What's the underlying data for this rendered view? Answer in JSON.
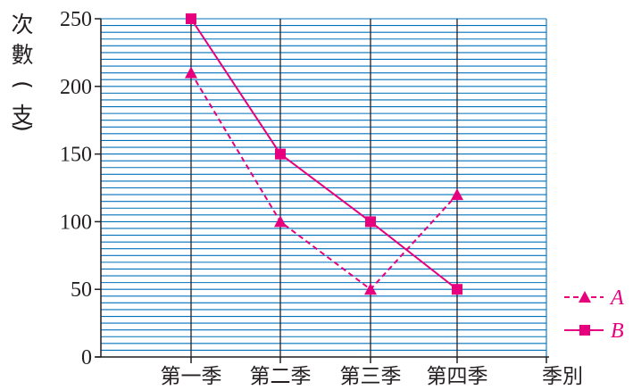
{
  "chart_data": {
    "type": "line",
    "xlabel": "季別",
    "ylabel_chars": [
      "次",
      "數",
      "(",
      "支",
      ")"
    ],
    "categories": [
      "第一季",
      "第二季",
      "第三季",
      "第四季"
    ],
    "ylim": [
      0,
      250
    ],
    "yticks": [
      "0",
      "50",
      "100",
      "150",
      "200",
      "250"
    ],
    "ytick_values": [
      0,
      50,
      100,
      150,
      200,
      250
    ],
    "minor_grid_step": 5,
    "grid": true,
    "legend_placement": "bottom-right",
    "series": [
      {
        "name": "A",
        "values": [
          210,
          100,
          50,
          120
        ],
        "marker": "triangle",
        "line": "dashed",
        "color": "#e6007e"
      },
      {
        "name": "B",
        "values": [
          250,
          150,
          100,
          50
        ],
        "marker": "square",
        "line": "solid",
        "color": "#e6007e"
      }
    ],
    "colors": {
      "grid": "#0072bc",
      "axis": "#231f20"
    }
  }
}
